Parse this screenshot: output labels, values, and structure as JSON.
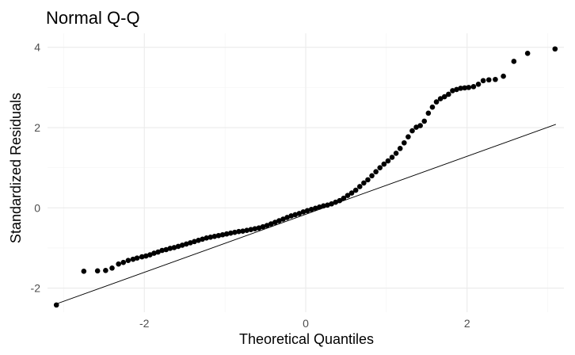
{
  "chart_data": {
    "type": "scatter",
    "title": "Normal Q-Q",
    "xlabel": "Theoretical Quantiles",
    "ylabel": "Standardized Residuals",
    "xlim": [
      -3.2,
      3.2
    ],
    "ylim": [
      -2.6,
      4.35
    ],
    "x_ticks": [
      -2,
      0,
      2
    ],
    "x_tick_labels": [
      "-2",
      "0",
      "2"
    ],
    "y_ticks": [
      -2,
      0,
      2,
      4
    ],
    "y_tick_labels": [
      "-2",
      "0",
      "2",
      "4"
    ],
    "grid": true,
    "legend": "none",
    "point_color": "#000000",
    "line_color": "#000000",
    "reference_line": {
      "x": [
        -3.1,
        3.1
      ],
      "y": [
        -2.4,
        2.08
      ]
    },
    "series": [
      {
        "x": [
          -3.09,
          -2.75,
          -2.58,
          -2.48,
          -2.4,
          -2.32,
          -2.26,
          -2.2,
          -2.14,
          -2.09,
          -2.03,
          -1.98,
          -1.93,
          -1.88,
          -1.83,
          -1.78,
          -1.73,
          -1.68,
          -1.63,
          -1.58,
          -1.53,
          -1.48,
          -1.43,
          -1.38,
          -1.33,
          -1.28,
          -1.23,
          -1.18,
          -1.13,
          -1.08,
          -1.03,
          -0.98,
          -0.93,
          -0.88,
          -0.83,
          -0.78,
          -0.73,
          -0.68,
          -0.63,
          -0.58,
          -0.53,
          -0.48,
          -0.43,
          -0.38,
          -0.33,
          -0.28,
          -0.23,
          -0.18,
          -0.13,
          -0.08,
          -0.03,
          0.02,
          0.07,
          0.12,
          0.17,
          0.22,
          0.27,
          0.32,
          0.37,
          0.42,
          0.47,
          0.52,
          0.57,
          0.62,
          0.67,
          0.72,
          0.77,
          0.82,
          0.87,
          0.92,
          0.97,
          1.02,
          1.07,
          1.12,
          1.17,
          1.22,
          1.27,
          1.32,
          1.37,
          1.42,
          1.47,
          1.52,
          1.57,
          1.62,
          1.67,
          1.72,
          1.77,
          1.82,
          1.87,
          1.92,
          1.97,
          2.02,
          2.08,
          2.14,
          2.2,
          2.27,
          2.35,
          2.45,
          2.58,
          2.75,
          3.09
        ],
        "y": [
          -2.42,
          -1.58,
          -1.57,
          -1.56,
          -1.5,
          -1.4,
          -1.36,
          -1.31,
          -1.28,
          -1.25,
          -1.22,
          -1.2,
          -1.17,
          -1.13,
          -1.1,
          -1.06,
          -1.04,
          -1.01,
          -0.99,
          -0.96,
          -0.93,
          -0.9,
          -0.87,
          -0.84,
          -0.81,
          -0.78,
          -0.75,
          -0.73,
          -0.71,
          -0.69,
          -0.67,
          -0.65,
          -0.63,
          -0.61,
          -0.59,
          -0.58,
          -0.56,
          -0.54,
          -0.52,
          -0.5,
          -0.47,
          -0.44,
          -0.4,
          -0.36,
          -0.32,
          -0.28,
          -0.24,
          -0.2,
          -0.17,
          -0.14,
          -0.1,
          -0.07,
          -0.04,
          -0.01,
          0.02,
          0.05,
          0.07,
          0.1,
          0.14,
          0.18,
          0.24,
          0.31,
          0.37,
          0.44,
          0.53,
          0.62,
          0.7,
          0.8,
          0.9,
          1.0,
          1.09,
          1.17,
          1.26,
          1.36,
          1.48,
          1.62,
          1.77,
          1.92,
          2.01,
          2.05,
          2.16,
          2.36,
          2.51,
          2.64,
          2.72,
          2.77,
          2.83,
          2.92,
          2.95,
          2.98,
          2.99,
          3.0,
          3.02,
          3.08,
          3.17,
          3.19,
          3.2,
          3.28,
          3.65,
          3.85,
          3.96
        ]
      }
    ]
  }
}
